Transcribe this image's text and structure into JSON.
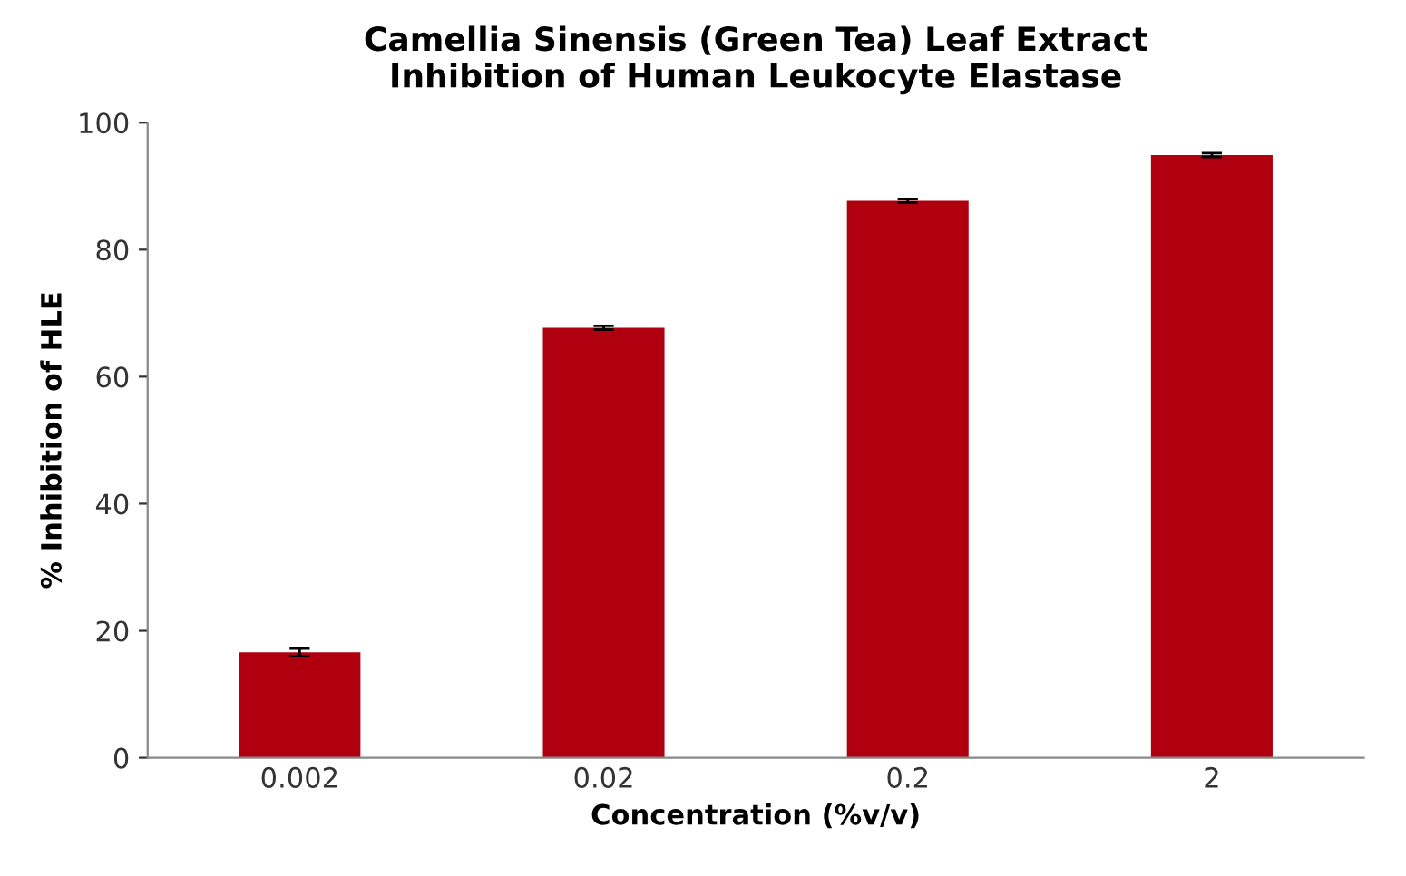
{
  "chart_data": {
    "type": "bar",
    "title": "Camellia Sinensis (Green Tea) Leaf Extract\nInhibition of Human Leukocyte Elastase",
    "xlabel": "Concentration (%v/v)",
    "ylabel": "% Inhibition of HLE",
    "categories": [
      "0.002",
      "0.02",
      "0.2",
      "2"
    ],
    "values": [
      16.6,
      67.7,
      87.7,
      94.9
    ],
    "errors": [
      0.6,
      0.3,
      0.3,
      0.3
    ],
    "color": "#b0000f",
    "ylim": [
      0,
      100
    ],
    "yticks": [
      0,
      20,
      40,
      60,
      80,
      100
    ],
    "grid": false
  }
}
